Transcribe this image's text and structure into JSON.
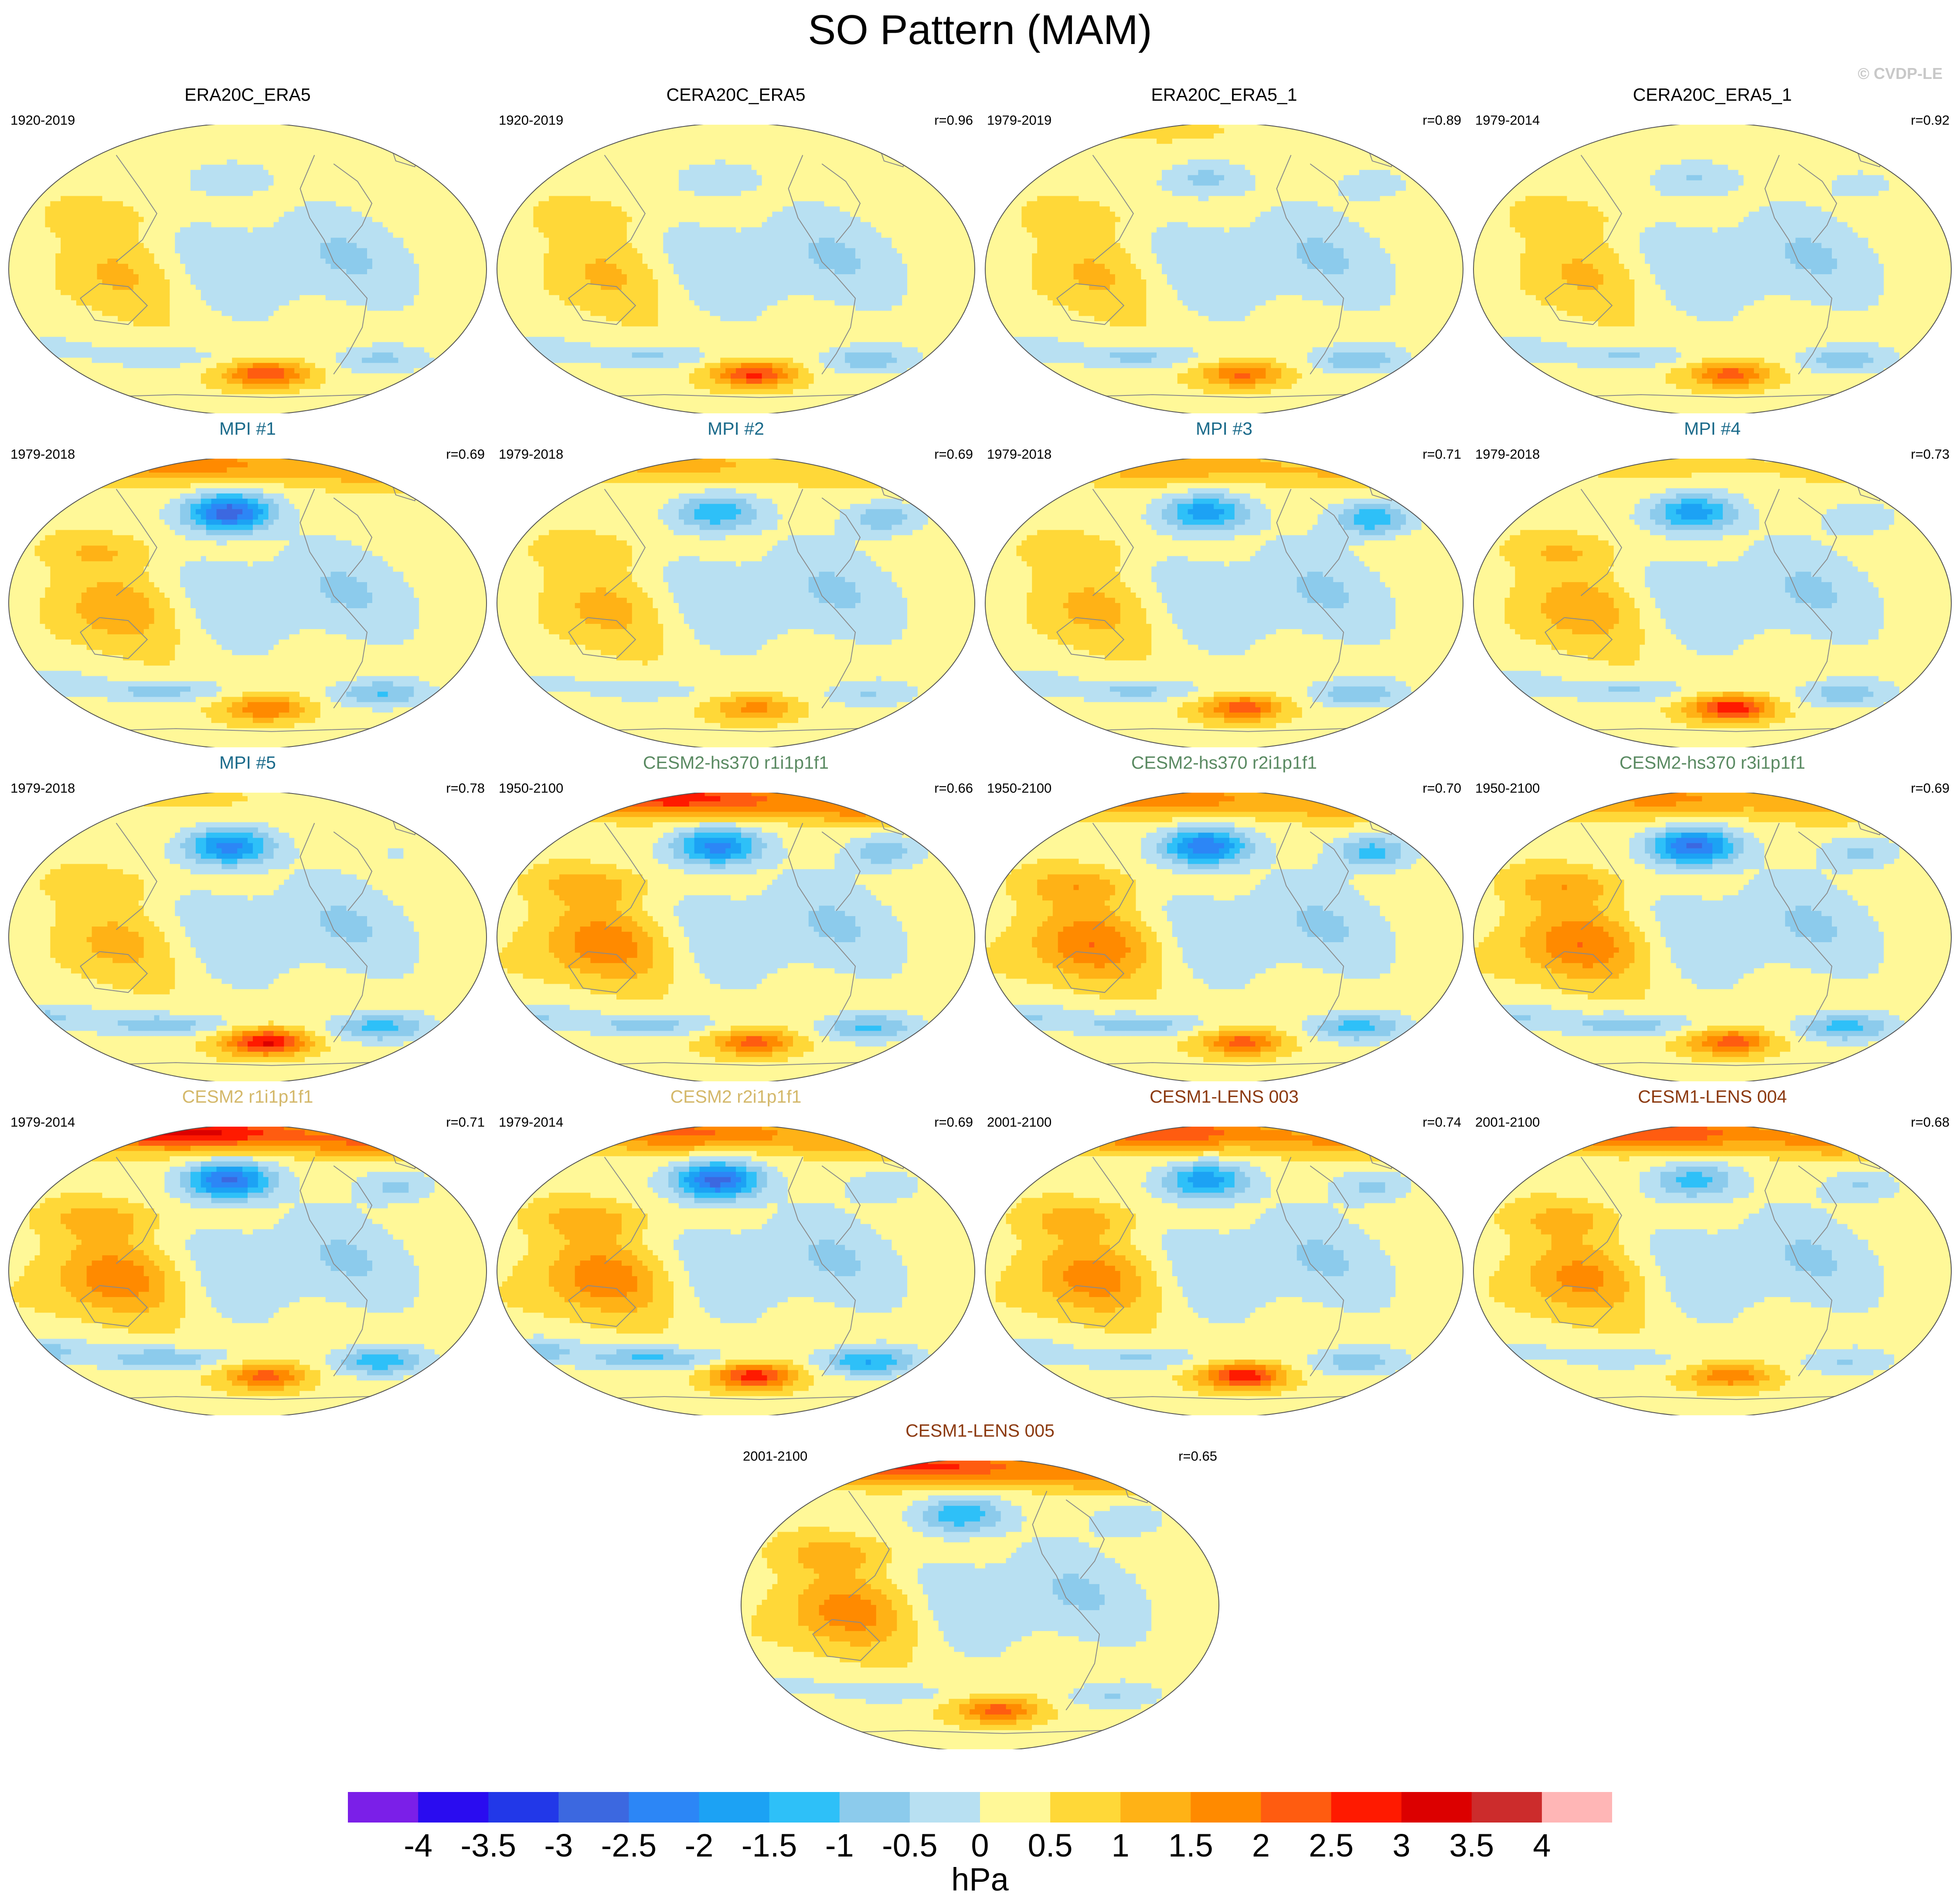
{
  "title": "SO Pattern (MAM)",
  "credit": "© CVDP-LE",
  "chart_data": {
    "type": "heatmap",
    "title": "SO Pattern (MAM)",
    "projection": "Robinson (Pacific-centered global maps)",
    "units": "hPa",
    "colorbar": {
      "levels": [
        -4,
        -3.5,
        -3,
        -2.5,
        -2,
        -1.5,
        -1,
        -0.5,
        0,
        0.5,
        1,
        1.5,
        2,
        2.5,
        3,
        3.5,
        4
      ],
      "labels": [
        "-4",
        "-3.5",
        "-3",
        "-2.5",
        "-2",
        "-1.5",
        "-1",
        "-0.5",
        "0",
        "0.5",
        "1",
        "1.5",
        "2",
        "2.5",
        "3",
        "3.5",
        "4"
      ],
      "colors": [
        "#7b1fe8",
        "#2a0cf0",
        "#2238e8",
        "#3c68e0",
        "#2c86f6",
        "#1ca2f4",
        "#2ec0f8",
        "#8ccbec",
        "#b8e0f2",
        "#fff898",
        "#ffd838",
        "#ffb216",
        "#ff8a00",
        "#ff5c10",
        "#ff1a00",
        "#dc0000",
        "#cc2c2c",
        "#ffb6b6"
      ],
      "unit_label": "hPa"
    },
    "panels": [
      {
        "title": "ERA20C_ERA5",
        "period": "1920-2019",
        "r": "",
        "title_color": "#000000",
        "style": {
          "nh": 0,
          "aleu": -0.8,
          "icel": -0.3,
          "indo": 0.7,
          "sh": 2.2,
          "shneg": -1.0
        }
      },
      {
        "title": "CERA20C_ERA5",
        "period": "1920-2019",
        "r": "r=0.96",
        "title_color": "#000000",
        "style": {
          "nh": 0,
          "aleu": -0.8,
          "icel": -0.3,
          "indo": 0.7,
          "sh": 2.3,
          "shneg": -1.2
        }
      },
      {
        "title": "ERA20C_ERA5_1",
        "period": "1979-2019",
        "r": "r=0.89",
        "title_color": "#000000",
        "style": {
          "nh": 0.2,
          "aleu": -1.0,
          "icel": -0.7,
          "indo": 0.7,
          "sh": 1.8,
          "shneg": -1.3
        }
      },
      {
        "title": "CERA20C_ERA5_1",
        "period": "1979-2014",
        "r": "r=0.92",
        "title_color": "#000000",
        "style": {
          "nh": 0.1,
          "aleu": -0.9,
          "icel": -0.6,
          "indo": 0.7,
          "sh": 1.9,
          "shneg": -1.2
        }
      },
      {
        "title": "MPI #1",
        "period": "1979-2018",
        "r": "r=0.69",
        "title_color": "#1a6a8a",
        "style": {
          "nh": 1.4,
          "aleu": -3.2,
          "icel": -0.2,
          "indo": 1.0,
          "sh": 1.7,
          "shneg": -1.4
        }
      },
      {
        "title": "MPI #2",
        "period": "1979-2018",
        "r": "r=0.69",
        "title_color": "#1a6a8a",
        "style": {
          "nh": 0.8,
          "aleu": -1.8,
          "icel": -1.2,
          "indo": 0.8,
          "sh": 1.4,
          "shneg": -0.9
        }
      },
      {
        "title": "MPI #3",
        "period": "1979-2018",
        "r": "r=0.71",
        "title_color": "#1a6a8a",
        "style": {
          "nh": 1.1,
          "aleu": -2.2,
          "icel": -1.8,
          "indo": 0.8,
          "sh": 2.0,
          "shneg": -1.3
        }
      },
      {
        "title": "MPI #4",
        "period": "1979-2018",
        "r": "r=0.73",
        "title_color": "#1a6a8a",
        "style": {
          "nh": 0.3,
          "aleu": -2.2,
          "icel": -0.8,
          "indo": 1.0,
          "sh": 2.6,
          "shneg": -1.2
        }
      },
      {
        "title": "MPI #5",
        "period": "1979-2018",
        "r": "r=0.78",
        "title_color": "#1a6a8a",
        "style": {
          "nh": 0.2,
          "aleu": -2.6,
          "icel": -0.4,
          "indo": 0.8,
          "sh": 2.8,
          "shneg": -1.6
        }
      },
      {
        "title": "CESM2-hs370 r1i1p1f1",
        "period": "1950-2100",
        "r": "r=0.66",
        "title_color": "#5a8a62",
        "style": {
          "nh": 2.4,
          "aleu": -2.6,
          "icel": -1.2,
          "indo": 1.5,
          "sh": 1.9,
          "shneg": -1.5
        }
      },
      {
        "title": "CESM2-hs370 r2i1p1f1",
        "period": "1950-2100",
        "r": "r=0.70",
        "title_color": "#5a8a62",
        "style": {
          "nh": 1.5,
          "aleu": -2.8,
          "icel": -1.6,
          "indo": 1.6,
          "sh": 1.9,
          "shneg": -1.6
        }
      },
      {
        "title": "CESM2-hs370 r3i1p1f1",
        "period": "1950-2100",
        "r": "r=0.69",
        "title_color": "#5a8a62",
        "style": {
          "nh": 1.3,
          "aleu": -3.0,
          "icel": -1.0,
          "indo": 1.6,
          "sh": 2.0,
          "shneg": -1.6
        }
      },
      {
        "title": "CESM2 r1i1p1f1",
        "period": "1979-2014",
        "r": "r=0.71",
        "title_color": "#d4b86a",
        "style": {
          "nh": 2.8,
          "aleu": -3.0,
          "icel": -1.0,
          "indo": 1.5,
          "sh": 1.9,
          "shneg": -1.7
        }
      },
      {
        "title": "CESM2 r2i1p1f1",
        "period": "1979-2014",
        "r": "r=0.69",
        "title_color": "#d4b86a",
        "style": {
          "nh": 1.8,
          "aleu": -3.1,
          "icel": -0.8,
          "indo": 1.5,
          "sh": 2.5,
          "shneg": -1.9
        }
      },
      {
        "title": "CESM1-LENS 003",
        "period": "2001-2100",
        "r": "r=0.74",
        "title_color": "#8c3a10",
        "style": {
          "nh": 2.0,
          "aleu": -2.2,
          "icel": -1.0,
          "indo": 1.4,
          "sh": 2.6,
          "shneg": -1.2
        }
      },
      {
        "title": "CESM1-LENS 004",
        "period": "2001-2100",
        "r": "r=0.68",
        "title_color": "#8c3a10",
        "style": {
          "nh": 2.1,
          "aleu": -1.6,
          "icel": -0.9,
          "indo": 1.3,
          "sh": 1.6,
          "shneg": -0.9
        }
      },
      {
        "title": "CESM1-LENS 005",
        "period": "2001-2100",
        "r": "r=0.65",
        "title_color": "#8c3a10",
        "style": {
          "nh": 2.3,
          "aleu": -1.8,
          "icel": -0.8,
          "indo": 1.4,
          "sh": 1.9,
          "shneg": -0.9
        }
      }
    ]
  }
}
